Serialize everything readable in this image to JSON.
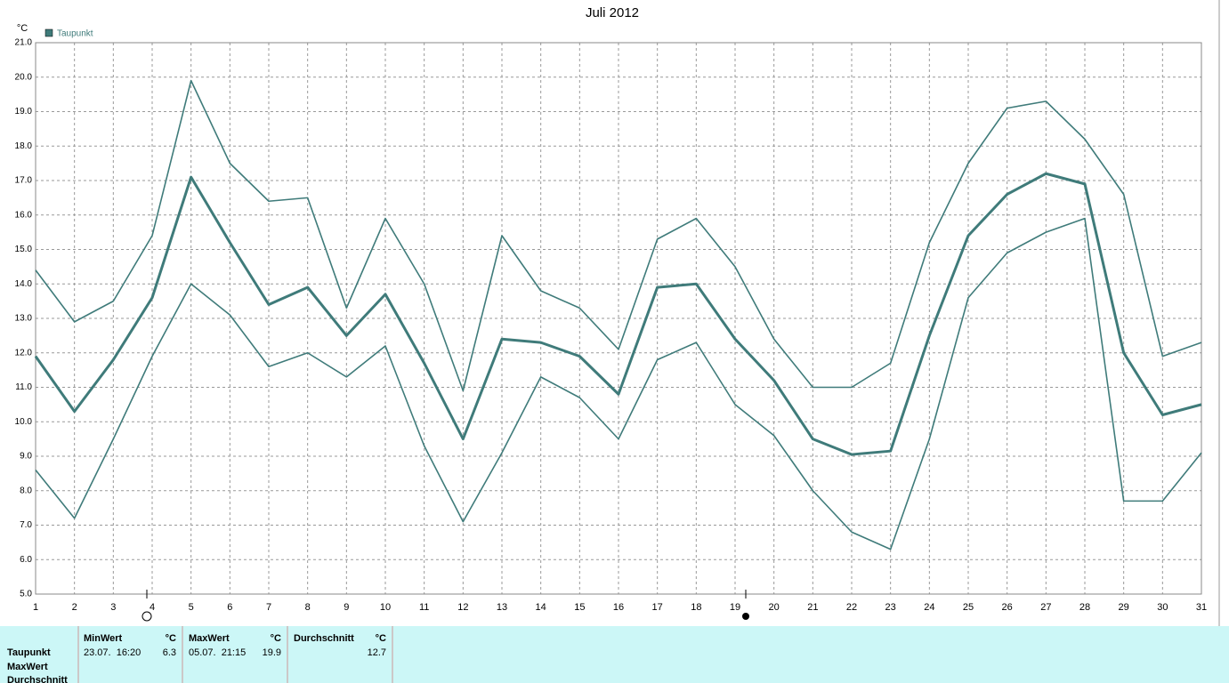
{
  "chart_data": {
    "type": "line",
    "title": "Juli 2012",
    "y_unit": "°C",
    "x": [
      1,
      2,
      3,
      4,
      5,
      6,
      7,
      8,
      9,
      10,
      11,
      12,
      13,
      14,
      15,
      16,
      17,
      18,
      19,
      20,
      21,
      22,
      23,
      24,
      25,
      26,
      27,
      28,
      29,
      30,
      31
    ],
    "xlim": [
      1,
      31
    ],
    "xticks": [
      1,
      2,
      3,
      4,
      5,
      6,
      7,
      8,
      9,
      10,
      11,
      12,
      13,
      14,
      15,
      16,
      17,
      18,
      19,
      20,
      21,
      22,
      23,
      24,
      25,
      26,
      27,
      28,
      29,
      30,
      31
    ],
    "ylim": [
      5,
      21
    ],
    "yticks": [
      {
        "value": 5,
        "label": "5.0"
      },
      {
        "value": 6,
        "label": "6.0"
      },
      {
        "value": 7,
        "label": "7.0"
      },
      {
        "value": 8,
        "label": "8.0"
      },
      {
        "value": 9,
        "label": "9.0"
      },
      {
        "value": 10,
        "label": "10.0"
      },
      {
        "value": 11,
        "label": "11.0"
      },
      {
        "value": 12,
        "label": "12.0"
      },
      {
        "value": 13,
        "label": "13.0"
      },
      {
        "value": 14,
        "label": "14.0"
      },
      {
        "value": 15,
        "label": "15.0"
      },
      {
        "value": 16,
        "label": "16.0"
      },
      {
        "value": 17,
        "label": "17.0"
      },
      {
        "value": 18,
        "label": "18.0"
      },
      {
        "value": 19,
        "label": "19.0"
      },
      {
        "value": 20,
        "label": "20.0"
      },
      {
        "value": 21,
        "label": "21.0"
      }
    ],
    "grid": true,
    "series": [
      {
        "name": "Taupunkt",
        "color": "#3f7b7a",
        "values": [
          11.9,
          10.3,
          11.8,
          13.6,
          17.1,
          15.2,
          13.4,
          13.9,
          12.5,
          13.7,
          11.7,
          9.5,
          12.4,
          12.3,
          11.9,
          10.8,
          13.9,
          14.0,
          12.4,
          11.2,
          9.5,
          9.05,
          9.15,
          12.5,
          15.4,
          16.6,
          17.2,
          16.9,
          12.0,
          10.2,
          10.5
        ]
      },
      {
        "color": "#3f7b7a",
        "values": [
          14.4,
          12.9,
          13.5,
          15.4,
          19.9,
          17.5,
          16.4,
          16.5,
          13.3,
          15.9,
          14.0,
          10.9,
          15.4,
          13.8,
          13.3,
          12.1,
          15.3,
          15.9,
          14.5,
          12.4,
          11.0,
          11.0,
          11.7,
          15.2,
          17.5,
          19.1,
          19.3,
          18.2,
          16.6,
          11.9,
          12.3
        ]
      },
      {
        "color": "#3f7b7a",
        "values": [
          8.6,
          7.2,
          9.5,
          11.9,
          14.0,
          13.1,
          11.6,
          12.0,
          11.3,
          12.2,
          9.3,
          7.1,
          9.1,
          11.3,
          10.7,
          9.5,
          11.8,
          12.3,
          10.5,
          9.6,
          8.0,
          6.8,
          6.3,
          9.5,
          13.6,
          14.9,
          15.5,
          15.9,
          7.7,
          7.7,
          9.1
        ]
      }
    ]
  },
  "table": {
    "header": [
      "MinWert",
      "°C",
      "MaxWert",
      "°C",
      "Durchschnitt",
      "°C"
    ],
    "row_labels": [
      "Taupunkt",
      "MaxWert",
      "Durchschnitt"
    ],
    "rows": [
      {
        "min_time": "23.07.  16:20",
        "min": 6.3,
        "max_time": "05.07.  21:15",
        "max": 19.9,
        "mean": 12.7
      }
    ]
  }
}
